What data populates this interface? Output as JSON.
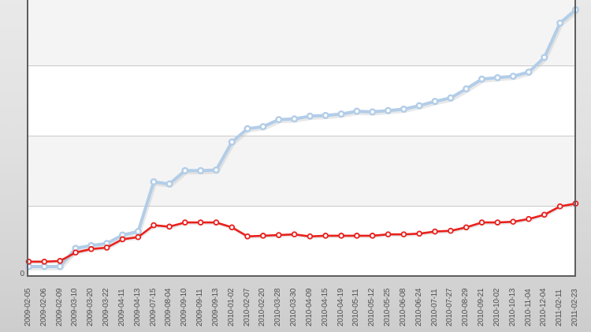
{
  "chart_data": {
    "type": "line",
    "title": "",
    "xlabel": "",
    "ylabel": "",
    "legend": "none",
    "grid": "horizontal-bands",
    "x_tick_rotation_deg": 90,
    "y_tick_labels_visible": [
      "0"
    ],
    "y_gridlines": [
      100,
      200,
      300
    ],
    "ylim": [
      0,
      394
    ],
    "plot_band_colors": [
      "#f4f4f4",
      "#ffffff"
    ],
    "categories": [
      "2009-02-05",
      "2009-02-06",
      "2009-02-09",
      "2009-03-10",
      "2009-03-20",
      "2009-03-22",
      "2009-04-11",
      "2009-04-13",
      "2009-07-15",
      "2009-08-04",
      "2009-09-10",
      "2009-09-11",
      "2009-09-13",
      "2010-01-02",
      "2010-02-07",
      "2010-02-20",
      "2010-03-28",
      "2010-03-30",
      "2010-04-09",
      "2010-04-15",
      "2010-04-19",
      "2010-05-11",
      "2010-05-12",
      "2010-05-25",
      "2010-06-08",
      "2010-06-24",
      "2010-07-11",
      "2010-07-27",
      "2010-08-29",
      "2010-09-21",
      "2010-10-02",
      "2010-10-13",
      "2010-11-04",
      "2010-12-04",
      "2011-02-11",
      "2011-02-23"
    ],
    "series": [
      {
        "name": "series-blue",
        "color": "#b2cde8",
        "marker": "white-filled-circle",
        "line_width": 4,
        "values": [
          13,
          13,
          13,
          39,
          43,
          46,
          58,
          63,
          134,
          131,
          150,
          150,
          151,
          191,
          210,
          213,
          223,
          224,
          228,
          229,
          231,
          235,
          234,
          236,
          238,
          243,
          249,
          254,
          267,
          281,
          283,
          285,
          291,
          312,
          361,
          380
        ]
      },
      {
        "name": "series-red",
        "color": "#e8211d",
        "marker": "white-filled-circle",
        "line_width": 2.6,
        "values": [
          20,
          20,
          21,
          33,
          38,
          40,
          52,
          55,
          72,
          70,
          76,
          76,
          76,
          69,
          56,
          57,
          58,
          59,
          56,
          57,
          57,
          57,
          57,
          59,
          59,
          60,
          63,
          64,
          69,
          76,
          76,
          77,
          81,
          87,
          99,
          103
        ]
      }
    ],
    "colors": {
      "axis": "#5e5e5e",
      "gridline": "#c9c9c9",
      "tick_label": "#515151",
      "outer_background_top": "#e9e9e9",
      "outer_background_bottom": "#cdcdcd"
    }
  }
}
